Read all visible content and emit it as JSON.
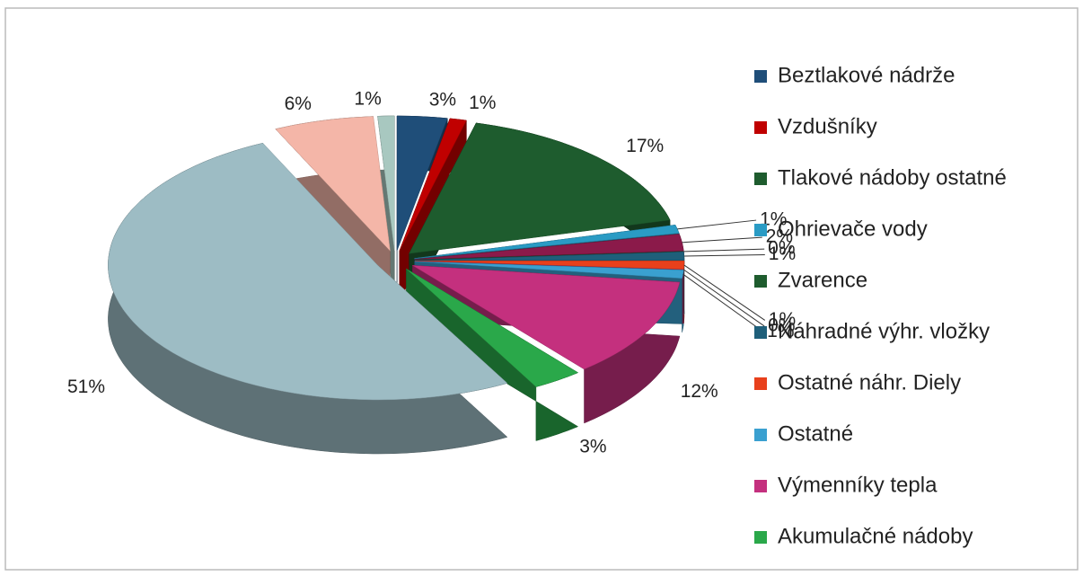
{
  "chart_data": {
    "type": "pie3d",
    "categories": [
      "Beztlakové nádrže",
      "Vzdušníky",
      "Tlakové nádoby ostatné",
      "Ohrievače vody",
      null,
      "Zvarence",
      "Náhradné výhr. vložky",
      "Ostatné náhr. Diely",
      null,
      "Ostatné",
      "Výmenníky tepla",
      "Akumulačné nádoby",
      null,
      null,
      null
    ],
    "values": [
      3,
      1,
      17,
      1,
      2,
      0,
      1,
      1,
      0,
      1,
      12,
      3,
      51,
      6,
      1
    ],
    "value_labels": [
      "3%",
      "1%",
      "17%",
      "1%",
      "2%",
      "0%",
      "1%",
      "1%",
      "0%",
      "1%",
      "12%",
      "3%",
      "51%",
      "6%",
      "1%"
    ],
    "colors": [
      "#1f4e79",
      "#c00000",
      "#1e5c2e",
      "#2a9bc4",
      "#8b1a4a",
      "#1e5c2e",
      "#1f5f7a",
      "#e8401c",
      "#a0306a",
      "#3aa0d0",
      "#c4307e",
      "#2aa84a",
      "#9dbcc4",
      "#f4b6a8",
      "#a8c8c0"
    ]
  }
}
